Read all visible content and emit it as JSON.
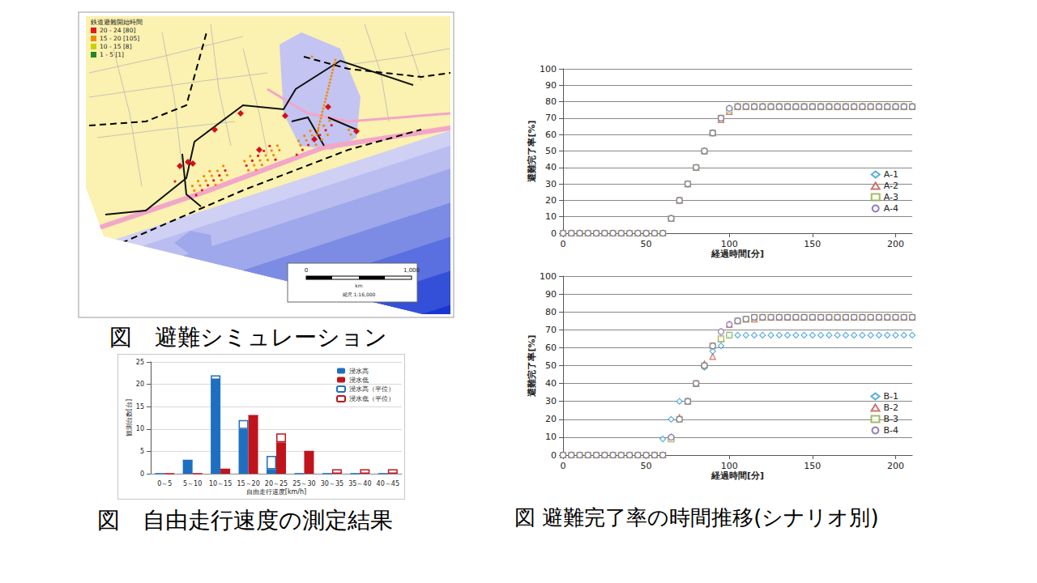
{
  "captions": [
    "図　避難シミュレーション",
    "図　自由走行速度の測定結果",
    "図 避難完了率の時間推移(シナリオ別)"
  ],
  "map": {
    "legend_title": "鉄道避難開始時間",
    "legend": [
      {
        "label": "20 - 24 [80]",
        "color": "#e8141c"
      },
      {
        "label": "15 - 20 [105]",
        "color": "#f08a00"
      },
      {
        "label": "10 - 15 [8]",
        "color": "#c8d200"
      },
      {
        "label": "1 - 5 [1]",
        "color": "#1f8a1f"
      }
    ],
    "scale": {
      "labels": [
        "0",
        "1,000"
      ],
      "unit": "km",
      "ratio": "縮尺 1:16,000"
    }
  },
  "chart_data": [
    {
      "type": "bar",
      "x_label": "自由走行速度[km/h]",
      "y_label": "観測台数[台]",
      "categories": [
        "0～5",
        "5～10",
        "10～15",
        "15～20",
        "20～25",
        "25～30",
        "30～35",
        "35～40",
        "40～45"
      ],
      "series": [
        {
          "name": "浸水高",
          "color": "#1f6fc0",
          "values": [
            0,
            3,
            21,
            10,
            1,
            0,
            0,
            0,
            0
          ]
        },
        {
          "name": "浸水低",
          "color": "#c0141c",
          "values": [
            0,
            0,
            1,
            13,
            7,
            5,
            0,
            0,
            0
          ]
        },
        {
          "name": "浸水高（平位）",
          "color": "#1f6fc0",
          "marker": "hollow",
          "values": [
            0,
            0,
            1,
            2,
            3,
            0,
            0,
            0,
            0
          ]
        },
        {
          "name": "浸水低（平位）",
          "color": "#c0141c",
          "marker": "hollow",
          "values": [
            0,
            0,
            0,
            0,
            2,
            0,
            1,
            1,
            1
          ]
        }
      ],
      "ylim": [
        0,
        25
      ],
      "yticks": [
        0,
        5,
        10,
        15,
        20,
        25
      ],
      "stacked": true,
      "grid": true,
      "legend": "upper right"
    },
    {
      "type": "scatter",
      "x_label": "経過時間[分]",
      "y_label": "避難完了率[%]",
      "x": [
        0,
        5,
        10,
        15,
        20,
        25,
        30,
        35,
        40,
        45,
        50,
        55,
        60,
        65,
        70,
        75,
        80,
        85,
        90,
        95,
        100,
        105,
        110,
        115,
        120,
        125,
        130,
        135,
        140,
        145,
        150,
        155,
        160,
        165,
        170,
        175,
        180,
        185,
        190,
        195,
        200,
        205,
        210
      ],
      "series": [
        {
          "name": "A-1",
          "color": "#2e9ad6",
          "marker": "diamond",
          "values": [
            0,
            0,
            0,
            0,
            0,
            0,
            0,
            0,
            0,
            0,
            0,
            0,
            0,
            9,
            20,
            30,
            40,
            50,
            61,
            70,
            76,
            77,
            77,
            77,
            77,
            77,
            77,
            77,
            77,
            77,
            77,
            77,
            77,
            77,
            77,
            77,
            77,
            77,
            77,
            77,
            77,
            77,
            77
          ]
        },
        {
          "name": "A-2",
          "color": "#c0504d",
          "marker": "triangle",
          "values": [
            0,
            0,
            0,
            0,
            0,
            0,
            0,
            0,
            0,
            0,
            0,
            0,
            0,
            9,
            20,
            30,
            40,
            50,
            61,
            69,
            74,
            77,
            77,
            77,
            77,
            77,
            77,
            77,
            77,
            77,
            77,
            77,
            77,
            77,
            77,
            77,
            77,
            77,
            77,
            77,
            77,
            77,
            77
          ]
        },
        {
          "name": "A-3",
          "color": "#8aac3c",
          "marker": "square",
          "values": [
            0,
            0,
            0,
            0,
            0,
            0,
            0,
            0,
            0,
            0,
            0,
            0,
            0,
            9,
            20,
            30,
            40,
            50,
            61,
            70,
            75,
            77,
            77,
            77,
            77,
            77,
            77,
            77,
            77,
            77,
            77,
            77,
            77,
            77,
            77,
            77,
            77,
            77,
            77,
            77,
            77,
            77,
            77
          ]
        },
        {
          "name": "A-4",
          "color": "#7a5ea8",
          "marker": "circle",
          "values": [
            0,
            0,
            0,
            0,
            0,
            0,
            0,
            0,
            0,
            0,
            0,
            0,
            0,
            9,
            20,
            30,
            40,
            50,
            61,
            70,
            76,
            77,
            77,
            77,
            77,
            77,
            77,
            77,
            77,
            77,
            77,
            77,
            77,
            77,
            77,
            77,
            77,
            77,
            77,
            77,
            77,
            77,
            77
          ]
        }
      ],
      "xlim": [
        0,
        210
      ],
      "xticks": [
        0,
        50,
        100,
        150,
        200
      ],
      "ylim": [
        0,
        100
      ],
      "yticks": [
        0,
        10,
        20,
        30,
        40,
        50,
        60,
        70,
        80,
        90,
        100
      ],
      "grid": true,
      "legend": "lower right"
    },
    {
      "type": "scatter",
      "x_label": "経過時間[分]",
      "y_label": "避難完了率[%]",
      "x": [
        0,
        5,
        10,
        15,
        20,
        25,
        30,
        35,
        40,
        45,
        50,
        55,
        60,
        65,
        70,
        75,
        80,
        85,
        90,
        95,
        100,
        105,
        110,
        115,
        120,
        125,
        130,
        135,
        140,
        145,
        150,
        155,
        160,
        165,
        170,
        175,
        180,
        185,
        190,
        195,
        200,
        205,
        210
      ],
      "series": [
        {
          "name": "B-1",
          "color": "#2e9ad6",
          "marker": "diamond",
          "values": [
            0,
            0,
            0,
            0,
            0,
            0,
            0,
            0,
            0,
            0,
            0,
            0,
            9,
            20,
            30,
            30,
            40,
            49,
            58,
            61,
            67,
            67,
            67,
            67,
            67,
            67,
            67,
            67,
            67,
            67,
            67,
            67,
            67,
            67,
            67,
            67,
            67,
            67,
            67,
            67,
            67,
            67,
            67
          ]
        },
        {
          "name": "B-2",
          "color": "#c0504d",
          "marker": "triangle",
          "values": [
            0,
            0,
            0,
            0,
            0,
            0,
            0,
            0,
            0,
            0,
            0,
            0,
            0,
            10,
            21,
            30,
            40,
            51,
            55,
            65,
            73,
            75,
            76,
            76,
            77,
            77,
            77,
            77,
            77,
            77,
            77,
            77,
            77,
            77,
            77,
            77,
            77,
            77,
            77,
            77,
            77,
            77,
            77
          ]
        },
        {
          "name": "B-3",
          "color": "#8aac3c",
          "marker": "square",
          "values": [
            0,
            0,
            0,
            0,
            0,
            0,
            0,
            0,
            0,
            0,
            0,
            0,
            0,
            9,
            20,
            30,
            40,
            50,
            61,
            65,
            67,
            75,
            76,
            77,
            77,
            77,
            77,
            77,
            77,
            77,
            77,
            77,
            77,
            77,
            77,
            77,
            77,
            77,
            77,
            77,
            77,
            77,
            77
          ]
        },
        {
          "name": "B-4",
          "color": "#7a5ea8",
          "marker": "circle",
          "values": [
            0,
            0,
            0,
            0,
            0,
            0,
            0,
            0,
            0,
            0,
            0,
            0,
            0,
            10,
            20,
            30,
            40,
            50,
            61,
            69,
            73,
            75,
            76,
            77,
            77,
            77,
            77,
            77,
            77,
            77,
            77,
            77,
            77,
            77,
            77,
            77,
            77,
            77,
            77,
            77,
            77,
            77,
            77
          ]
        }
      ],
      "xlim": [
        0,
        210
      ],
      "xticks": [
        0,
        50,
        100,
        150,
        200
      ],
      "ylim": [
        0,
        100
      ],
      "yticks": [
        0,
        10,
        20,
        30,
        40,
        50,
        60,
        70,
        80,
        90,
        100
      ],
      "grid": true,
      "legend": "lower right"
    }
  ]
}
